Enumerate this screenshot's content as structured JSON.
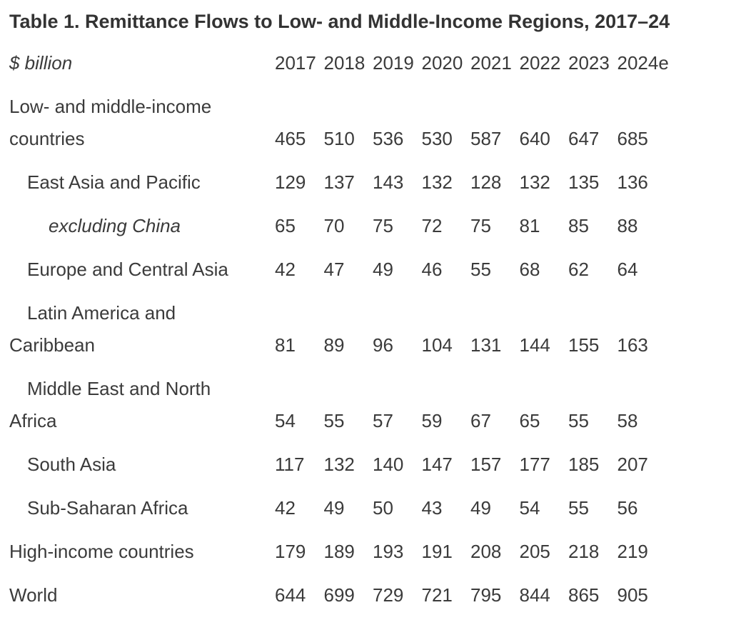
{
  "page": {
    "background_color": "#ffffff",
    "text_color": "#3b3b3b",
    "title_color": "#333333"
  },
  "chart_data": {
    "type": "table",
    "title": "Table 1. Remittance Flows to Low- and Middle-Income Regions, 2017–24",
    "unit_label": "$ billion",
    "columns": [
      "2017",
      "2018",
      "2019",
      "2020",
      "2021",
      "2022",
      "2023",
      "2024e"
    ],
    "rows": [
      {
        "label": "Low- and middle-income countries",
        "emphasis": "bold",
        "indent": 0,
        "values": [
          465,
          510,
          536,
          530,
          587,
          640,
          647,
          685
        ]
      },
      {
        "label": "East Asia and Pacific",
        "emphasis": "normal",
        "indent": 1,
        "values": [
          129,
          137,
          143,
          132,
          128,
          132,
          135,
          136
        ]
      },
      {
        "label": "excluding China",
        "emphasis": "italic",
        "indent": 2,
        "values": [
          65,
          70,
          75,
          72,
          75,
          81,
          85,
          88
        ]
      },
      {
        "label": "Europe and Central Asia",
        "emphasis": "normal",
        "indent": 1,
        "values": [
          42,
          47,
          49,
          46,
          55,
          68,
          62,
          64
        ]
      },
      {
        "label": "Latin America and Caribbean",
        "emphasis": "normal",
        "indent": 1,
        "values": [
          81,
          89,
          96,
          104,
          131,
          144,
          155,
          163
        ]
      },
      {
        "label": "Middle East and North Africa",
        "emphasis": "normal",
        "indent": 1,
        "values": [
          54,
          55,
          57,
          59,
          67,
          65,
          55,
          58
        ]
      },
      {
        "label": "South Asia",
        "emphasis": "normal",
        "indent": 1,
        "values": [
          117,
          132,
          140,
          147,
          157,
          177,
          185,
          207
        ]
      },
      {
        "label": "Sub-Saharan Africa",
        "emphasis": "normal",
        "indent": 1,
        "values": [
          42,
          49,
          50,
          43,
          49,
          54,
          55,
          56
        ]
      },
      {
        "label": "High-income countries",
        "emphasis": "bold",
        "indent": 0,
        "values": [
          179,
          189,
          193,
          191,
          208,
          205,
          218,
          219
        ]
      },
      {
        "label": "World",
        "emphasis": "bold",
        "indent": 0,
        "values": [
          644,
          699,
          729,
          721,
          795,
          844,
          865,
          905
        ]
      }
    ]
  }
}
